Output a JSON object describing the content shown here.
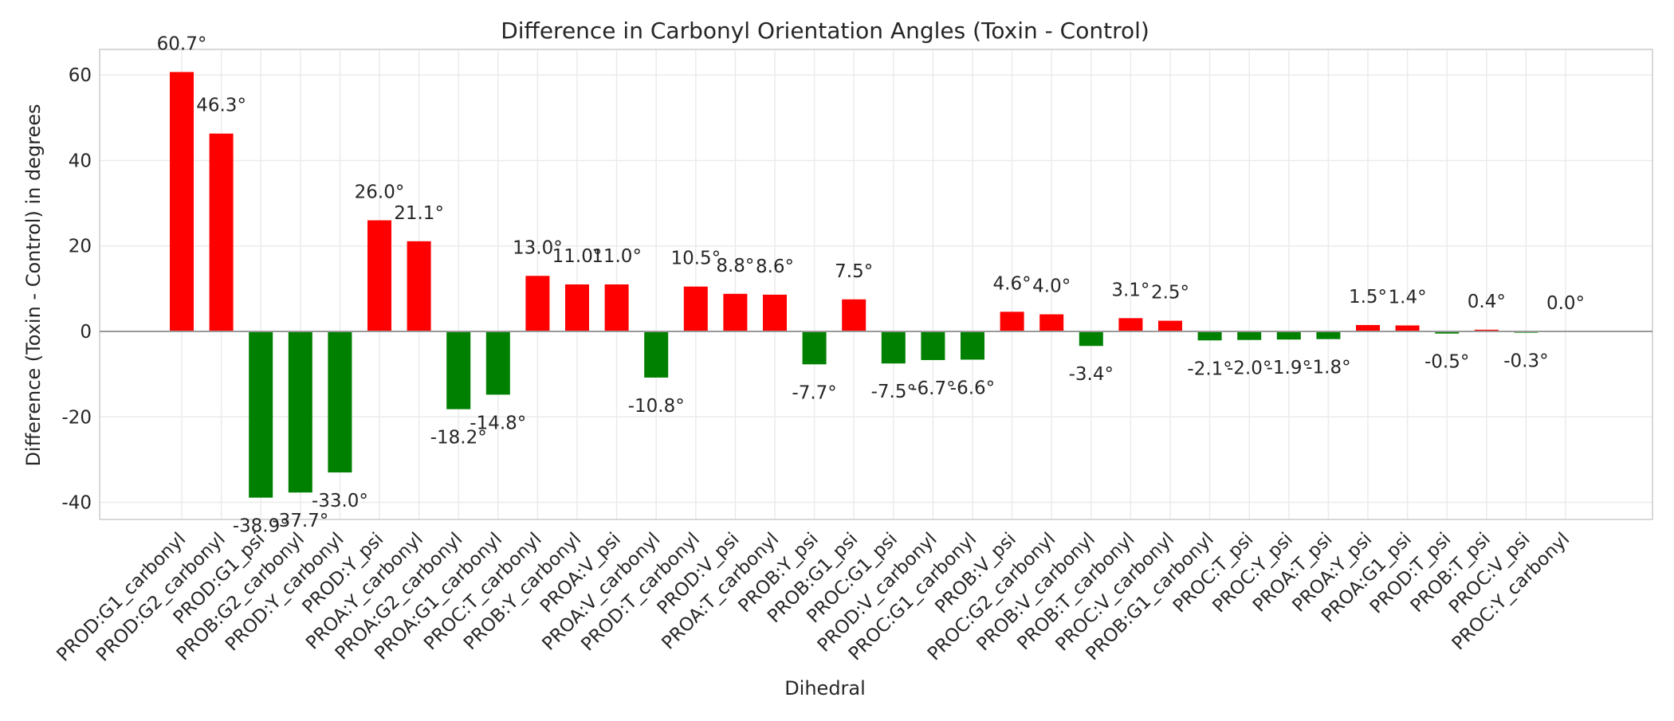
{
  "chart_data": {
    "type": "bar",
    "title": "Difference in Carbonyl Orientation Angles (Toxin - Control)",
    "xlabel": "Dihedral",
    "ylabel": "Difference (Toxin - Control) in degrees",
    "ylim": [
      -44,
      66
    ],
    "yticks": [
      -40,
      -20,
      0,
      20,
      40,
      60
    ],
    "grid": true,
    "value_suffix": "°",
    "colors": {
      "positive": "#ff0000",
      "negative": "#008000"
    },
    "categories": [
      "PROD:G1_carbonyl",
      "PROD:G2_carbonyl",
      "PROD:G1_psi",
      "PROB:G2_carbonyl",
      "PROD:Y_carbonyl",
      "PROD:Y_psi",
      "PROA:Y_carbonyl",
      "PROA:G2_carbonyl",
      "PROA:G1_carbonyl",
      "PROC:T_carbonyl",
      "PROB:Y_carbonyl",
      "PROA:V_psi",
      "PROA:V_carbonyl",
      "PROD:T_carbonyl",
      "PROD:V_psi",
      "PROA:T_carbonyl",
      "PROB:Y_psi",
      "PROB:G1_psi",
      "PROC:G1_psi",
      "PROD:V_carbonyl",
      "PROC:G1_carbonyl",
      "PROB:V_psi",
      "PROC:G2_carbonyl",
      "PROB:V_carbonyl",
      "PROB:T_carbonyl",
      "PROC:V_carbonyl",
      "PROB:G1_carbonyl",
      "PROC:T_psi",
      "PROC:Y_psi",
      "PROA:T_psi",
      "PROA:Y_psi",
      "PROA:G1_psi",
      "PROD:T_psi",
      "PROB:T_psi",
      "PROC:V_psi",
      "PROC:Y_carbonyl"
    ],
    "values": [
      60.7,
      46.3,
      -38.9,
      -37.7,
      -33.0,
      26.0,
      21.1,
      -18.2,
      -14.8,
      13.0,
      11.0,
      11.0,
      -10.8,
      10.5,
      8.8,
      8.6,
      -7.7,
      7.5,
      -7.5,
      -6.7,
      -6.6,
      4.6,
      4.0,
      -3.4,
      3.1,
      2.5,
      -2.1,
      -2.0,
      -1.9,
      -1.8,
      1.5,
      1.4,
      -0.5,
      0.4,
      -0.3,
      0.0
    ]
  }
}
